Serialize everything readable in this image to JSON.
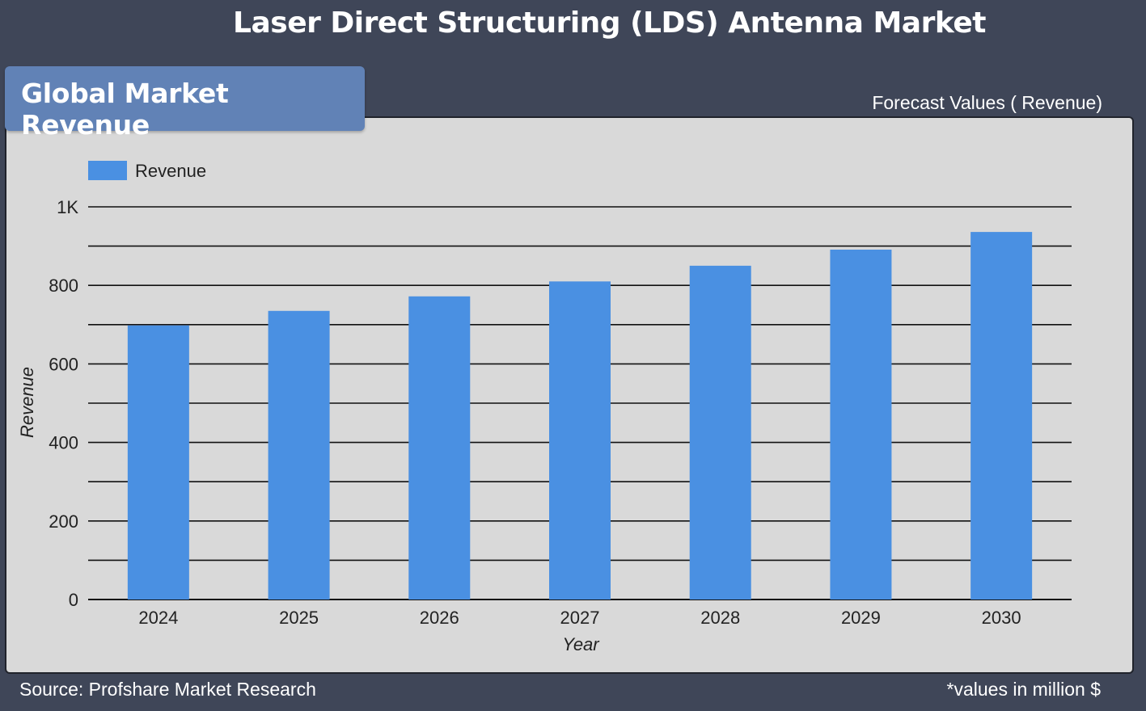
{
  "header": {
    "title": "Laser Direct Structuring (LDS) Antenna Market"
  },
  "tab": {
    "label": "Global Market Revenue"
  },
  "forecast_label": "Forecast Values ( Revenue)",
  "footer": {
    "source": "Source: Profshare Market Research",
    "units": "*values in million $"
  },
  "colors": {
    "bar": "#4a90e2",
    "background": "#3f4658",
    "panel": "#d9d9d9",
    "tab": "#6182b6"
  },
  "chart_data": {
    "type": "bar",
    "categories": [
      "2024",
      "2025",
      "2026",
      "2027",
      "2028",
      "2029",
      "2030"
    ],
    "series": [
      {
        "name": "Revenue",
        "values": [
          698,
          735,
          772,
          810,
          850,
          891,
          936
        ]
      }
    ],
    "xlabel": "Year",
    "ylabel": "Revenue",
    "ylim": [
      0,
      1000
    ],
    "yticks": [
      0,
      200,
      400,
      600,
      800,
      1000
    ],
    "ytick_labels": [
      "0",
      "200",
      "400",
      "600",
      "800",
      "1K"
    ],
    "grid": true,
    "legend": "top-left"
  }
}
